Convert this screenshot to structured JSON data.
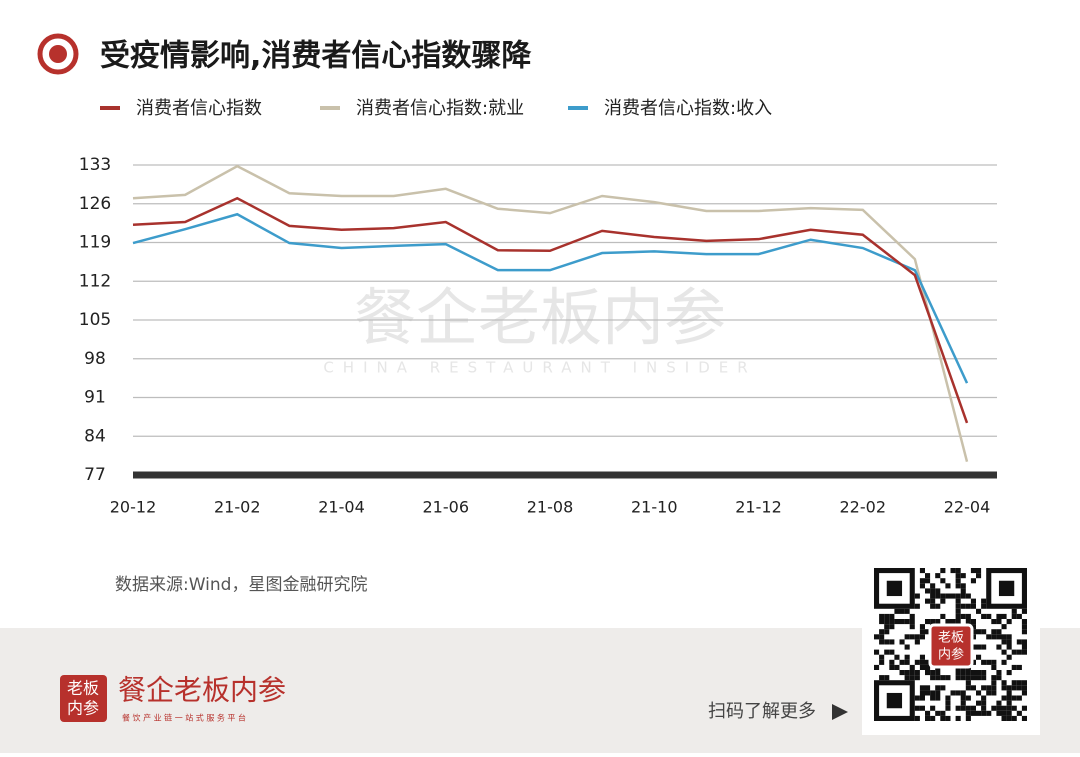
{
  "chart_data": {
    "type": "line",
    "title": "受疫情影响,消费者信心指数骤降",
    "categories": [
      "20-12",
      null,
      "21-02",
      null,
      "21-04",
      null,
      "21-06",
      null,
      "21-08",
      null,
      "21-10",
      null,
      "21-12",
      null,
      "22-02",
      null,
      "22-04"
    ],
    "series": [
      {
        "name": "消费者信心指数",
        "color": "#a8322d",
        "values": [
          122.2,
          122.7,
          127.0,
          122.0,
          121.3,
          121.6,
          122.7,
          117.6,
          117.5,
          121.1,
          120.0,
          119.3,
          119.6,
          121.3,
          120.4,
          113.1,
          86.4
        ]
      },
      {
        "name": "消费者信心指数:就业",
        "color": "#c9c1ab",
        "values": [
          127.0,
          127.6,
          132.8,
          127.9,
          127.4,
          127.4,
          128.7,
          125.1,
          124.3,
          127.4,
          126.3,
          124.7,
          124.7,
          125.2,
          124.9,
          116.0,
          79.4
        ]
      },
      {
        "name": "消费者信心指数:收入",
        "color": "#3d9ccb",
        "values": [
          118.9,
          121.4,
          124.1,
          118.9,
          118.0,
          118.4,
          118.7,
          114.0,
          114.0,
          117.1,
          117.4,
          116.9,
          116.9,
          119.5,
          118.0,
          114.0,
          93.6
        ]
      }
    ],
    "ylim": [
      77,
      133
    ],
    "yticks": [
      77,
      84,
      91,
      98,
      105,
      112,
      119,
      126,
      133
    ],
    "grid": true,
    "source": "数据来源:Wind，星图金融研究院"
  },
  "watermark": {
    "name": "餐企老板内参",
    "subtitle": "CHINA RESTAURANT INSIDER"
  },
  "footer": {
    "badge": [
      "老板",
      "内参"
    ],
    "brand": "餐企老板内参",
    "tagline": "餐 饮 产 业 链 一 站 式 服 务 平 台",
    "qr_badge": [
      "老板",
      "内参"
    ],
    "cta": "扫码了解更多"
  }
}
